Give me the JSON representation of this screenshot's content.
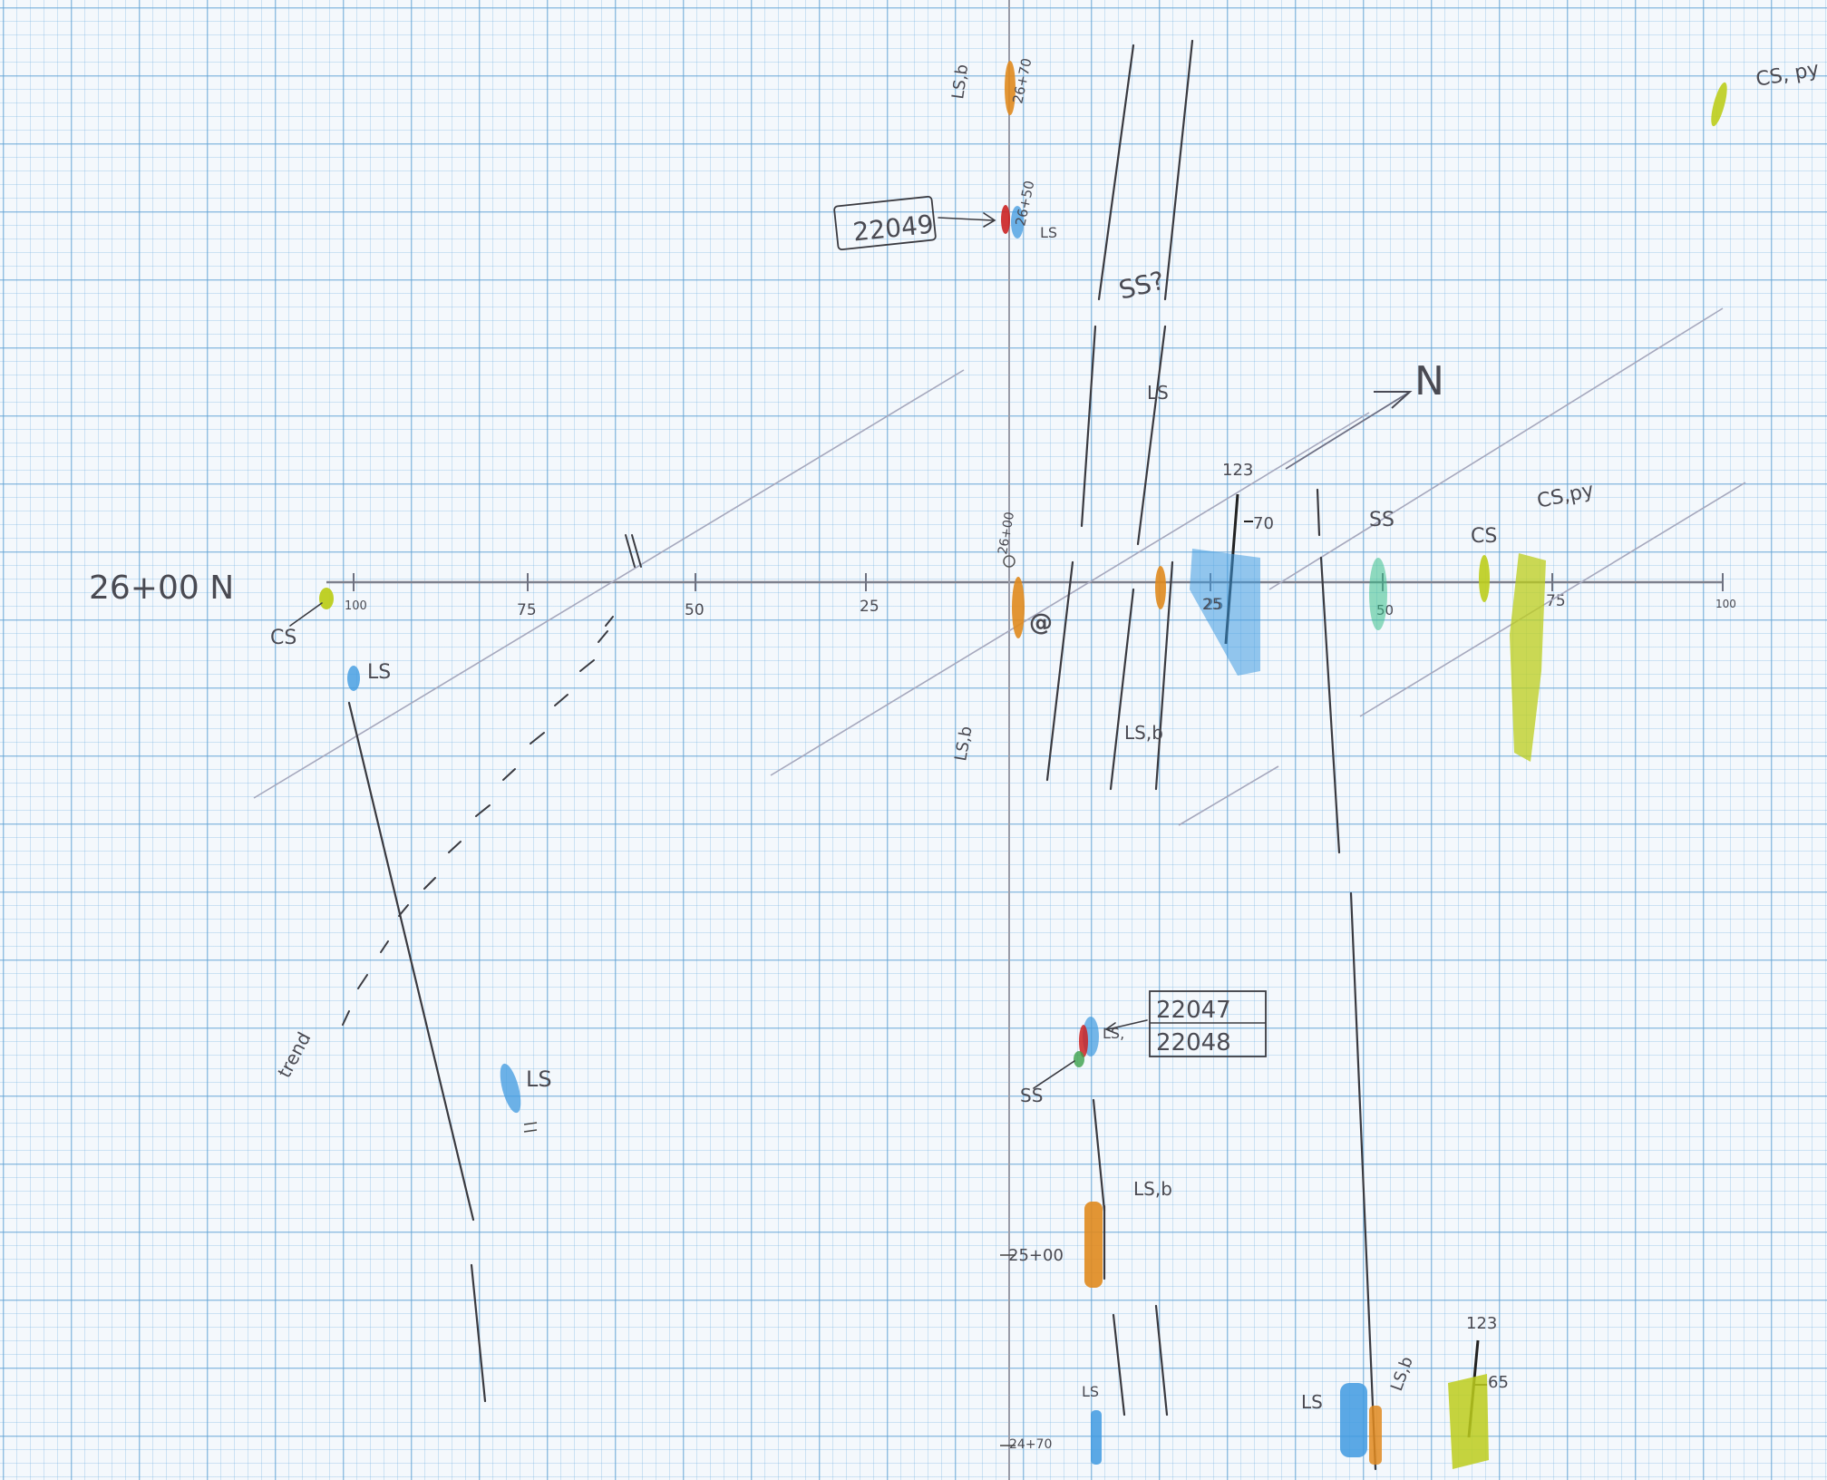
{
  "section": {
    "label": "26+00 N"
  },
  "axis": {
    "ticks": [
      {
        "label": "100",
        "value": -100
      },
      {
        "label": "75",
        "value": -75
      },
      {
        "label": "50",
        "value": -50
      },
      {
        "label": "25",
        "value": -25
      },
      {
        "label": "25",
        "value": 25
      },
      {
        "label": "50",
        "value": 50
      },
      {
        "label": "75",
        "value": 75
      },
      {
        "label": "100",
        "value": 100
      }
    ],
    "origin_label": "26+00"
  },
  "stations": {
    "s2670": "26+70",
    "s2650": "26+50",
    "s2500": "25+00",
    "s2470": "24+70"
  },
  "samples": {
    "s22049": "22049",
    "s22047": "22047",
    "s22048": "22048"
  },
  "rock_labels": {
    "cs_left": "CS",
    "ls_left": "LS",
    "ls_lower_left": "LS",
    "ls_b_2670": "LS,b",
    "ls_2650": "LS",
    "ss_q": "SS?",
    "ls_faint": "LS",
    "ls_b_center": "LS,b",
    "ls_b_left": "LS,b",
    "ss_mid": "SS",
    "cs_mid": "CS",
    "cs_py": "CS,py",
    "cs_py_top": "CS, py",
    "ls_22047": "LS,",
    "ss_22047": "SS",
    "ls_b_2500": "LS,b",
    "ls_2470": "LS",
    "ls_bottom": "LS",
    "ls_b_bottom": "LS,b"
  },
  "structures": {
    "north_arrow": "N",
    "strike_1": "123",
    "dip_1": "70",
    "strike_2": "123",
    "dip_2": "65",
    "trend_label": "trend",
    "marker_a": "25"
  },
  "colors": {
    "limestone_blue": "#3f9ae0",
    "oxide_orange": "#e08a1e",
    "sample_red": "#cc2222",
    "chert_yellow": "#bccd1c",
    "green_unit": "#3bbf8a",
    "pencil": "#3a3a40"
  }
}
